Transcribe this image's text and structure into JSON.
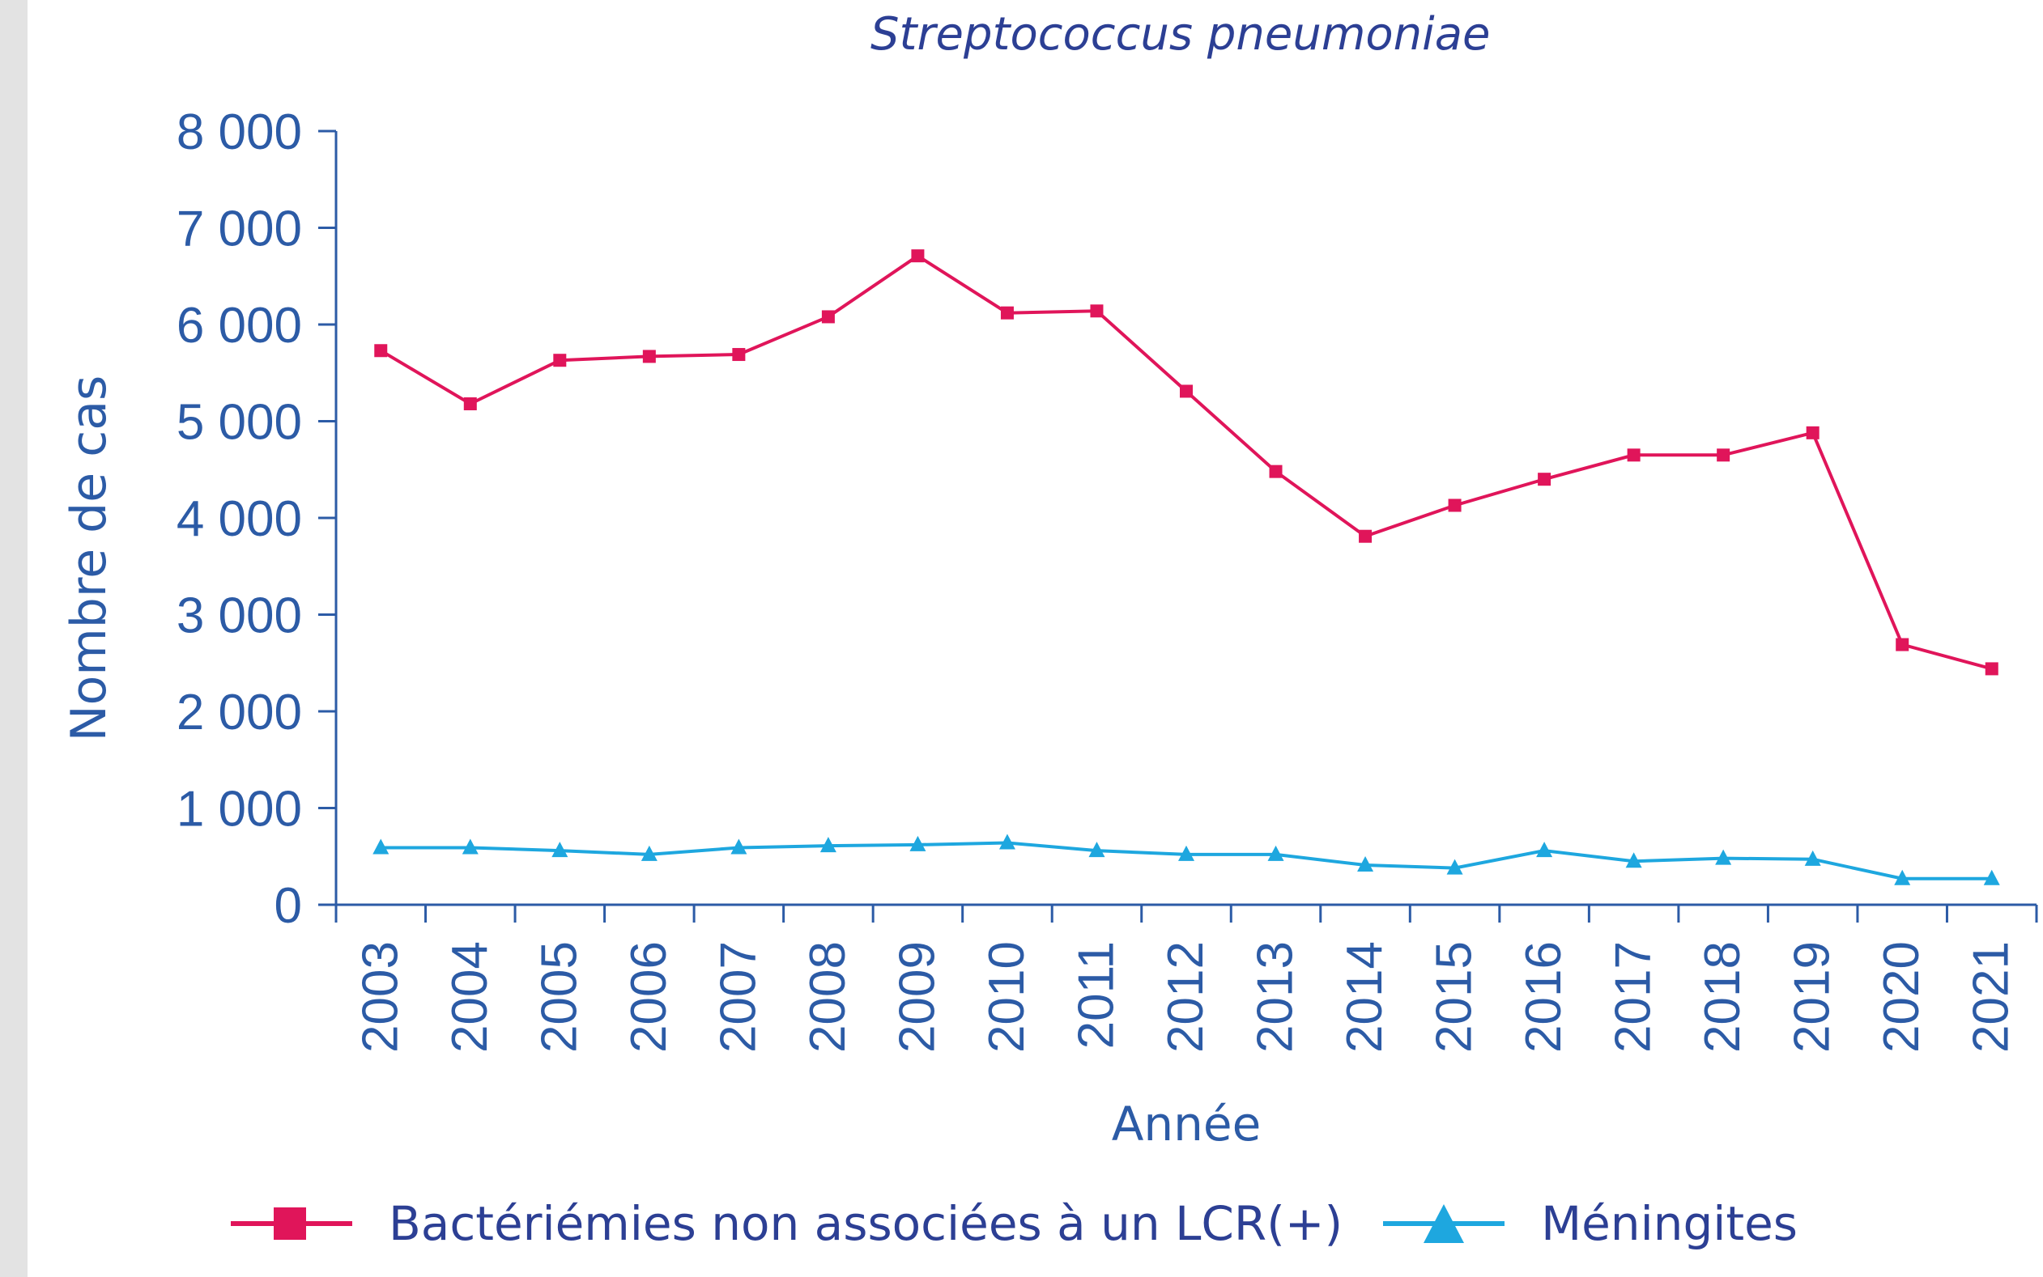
{
  "chart_data": {
    "type": "line",
    "title": "Streptococcus pneumoniae",
    "xlabel": "Année",
    "ylabel": "Nombre de cas",
    "ylim": [
      0,
      8000
    ],
    "y_ticks": [
      "0",
      "1 000",
      "2 000",
      "3 000",
      "4 000",
      "5 000",
      "6 000",
      "7 000",
      "8 000"
    ],
    "categories": [
      "2003",
      "2004",
      "2005",
      "2006",
      "2007",
      "2008",
      "2009",
      "2010",
      "2011",
      "2012",
      "2013",
      "2014",
      "2015",
      "2016",
      "2017",
      "2018",
      "2019",
      "2020",
      "2021"
    ],
    "series": [
      {
        "name": "Bactériémies non associées à un LCR(+)",
        "color": "#e0155a",
        "marker": "square",
        "values": [
          5730,
          5180,
          5630,
          5670,
          5690,
          6080,
          6710,
          6120,
          6140,
          5310,
          4480,
          3810,
          4130,
          4400,
          4650,
          4650,
          4880,
          2690,
          2440
        ]
      },
      {
        "name": "Méningites",
        "color": "#1ea7df",
        "marker": "triangle",
        "values": [
          590,
          590,
          560,
          520,
          590,
          610,
          620,
          640,
          560,
          520,
          520,
          410,
          380,
          560,
          450,
          480,
          470,
          270,
          270
        ]
      }
    ],
    "grid": false,
    "legend_position": "bottom"
  },
  "colors": {
    "axis": "#2c5ba6",
    "title": "#2c3f94",
    "frame": "#e3e3e3"
  }
}
